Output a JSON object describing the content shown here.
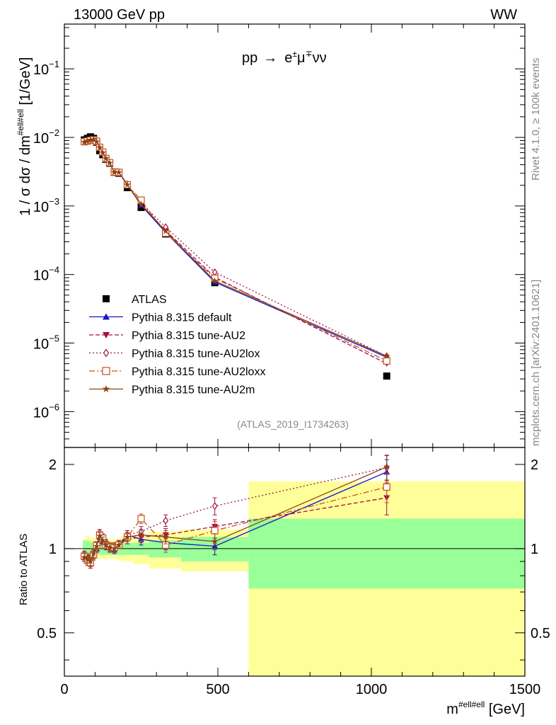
{
  "header": {
    "left": "13000 GeV pp",
    "right": "WW"
  },
  "process": {
    "prefix": "pp",
    "arrow": "→",
    "e": "e",
    "e_sup": "±",
    "mu": "μ",
    "mu_sup": "∓",
    "nunu": "νν"
  },
  "side_labels": {
    "rivet": "Rivet 4.1.0, ≥ 100k events",
    "mcplots": "mcplots.cern.ch [arXiv:2401.10621]"
  },
  "analysis_id": "(ATLAS_2019_I1734263)",
  "ylabel_main": {
    "p1": "1 / σ  dσ / dm",
    "sup": "#ell#ell",
    "p2": " [1/GeV]"
  },
  "ylabel_ratio": "Ratio to ATLAS",
  "xlabel": {
    "p1": "m",
    "sup": "#ell#ell",
    "p2": " [GeV]"
  },
  "main_ticks": [
    {
      "mant": "10",
      "exp": "−6",
      "value": 1e-06
    },
    {
      "mant": "10",
      "exp": "−5",
      "value": 1e-05
    },
    {
      "mant": "10",
      "exp": "−4",
      "value": 0.0001
    },
    {
      "mant": "10",
      "exp": "−3",
      "value": 0.001
    },
    {
      "mant": "10",
      "exp": "−2",
      "value": 0.01
    },
    {
      "mant": "10",
      "exp": "−1",
      "value": 0.1
    }
  ],
  "ratio_ticks": [
    {
      "label": "0.5",
      "value": 0.5
    },
    {
      "label": "1",
      "value": 1
    },
    {
      "label": "2",
      "value": 2
    }
  ],
  "x_ticks": [
    {
      "label": "0",
      "value": 0
    },
    {
      "label": "500",
      "value": 500
    },
    {
      "label": "1000",
      "value": 1000
    },
    {
      "label": "1500",
      "value": 1500
    }
  ],
  "chart_data": {
    "type": "line",
    "title": "pp → e±μ∓νν",
    "xlabel": "m#ell#ell [GeV]",
    "ylabel": "1 / σ dσ / dm#ell#ell [1/GeV]",
    "xlim": [
      0,
      1500
    ],
    "ylim_main": [
      3e-07,
      0.45
    ],
    "ylim_ratio": [
      0.35,
      2.3
    ],
    "yscale": "log",
    "x": [
      65,
      75,
      85,
      95,
      105,
      115,
      125,
      135,
      147.5,
      162.5,
      177.5,
      205,
      250,
      330,
      490,
      1050
    ],
    "data": {
      "name": "ATLAS",
      "values": [
        0.0092,
        0.0097,
        0.0102,
        0.0097,
        0.0085,
        0.0064,
        0.0056,
        0.0048,
        0.0042,
        0.0031,
        0.003,
        0.00185,
        0.00095,
        0.00039,
        7.6e-05,
        3.3e-06
      ],
      "band_edges": [
        60,
        70,
        80,
        90,
        100,
        110,
        120,
        130,
        140,
        155,
        170,
        185,
        225,
        275,
        380,
        600,
        1500
      ],
      "stat_err": [
        0.07,
        0.07,
        0.06,
        0.05,
        0.05,
        0.05,
        0.05,
        0.05,
        0.05,
        0.05,
        0.05,
        0.05,
        0.05,
        0.07,
        0.1,
        0.28
      ],
      "total_err": [
        0.08,
        0.11,
        0.1,
        0.09,
        0.08,
        0.08,
        0.08,
        0.08,
        0.08,
        0.08,
        0.09,
        0.1,
        0.12,
        0.15,
        0.17,
        0.74
      ]
    },
    "series": [
      {
        "name": "Pythia 8.315 default",
        "color": "#1515c8",
        "dash": "",
        "marker": "triangle-up",
        "ratio": [
          0.93,
          0.92,
          0.91,
          0.95,
          1.0,
          1.1,
          1.06,
          1.02,
          1.02,
          0.99,
          1.03,
          1.12,
          1.08,
          1.05,
          1.02,
          1.88
        ],
        "ratio_err": [
          0.03,
          0.03,
          0.03,
          0.03,
          0.03,
          0.03,
          0.03,
          0.03,
          0.03,
          0.03,
          0.03,
          0.04,
          0.05,
          0.06,
          0.07,
          0.2
        ]
      },
      {
        "name": "Pythia 8.315 tune-AU2",
        "color": "#a0104a",
        "dash": "6,3",
        "marker": "triangle-down",
        "ratio": [
          0.94,
          0.93,
          0.9,
          0.96,
          1.01,
          1.1,
          1.08,
          1.04,
          1.0,
          1.02,
          1.03,
          1.08,
          1.1,
          1.12,
          1.2,
          1.52
        ],
        "ratio_err": [
          0.03,
          0.03,
          0.03,
          0.03,
          0.03,
          0.03,
          0.03,
          0.03,
          0.03,
          0.03,
          0.03,
          0.04,
          0.05,
          0.06,
          0.07,
          0.2
        ]
      },
      {
        "name": "Pythia 8.315 tune-AU2lox",
        "color": "#a0104a",
        "dash": "2,3",
        "marker": "diamond-open",
        "ratio": [
          0.95,
          0.9,
          0.88,
          0.94,
          1.0,
          1.14,
          1.1,
          1.05,
          1.01,
          1.0,
          1.04,
          1.12,
          1.15,
          1.26,
          1.42,
          1.95
        ],
        "ratio_err": [
          0.03,
          0.03,
          0.03,
          0.03,
          0.03,
          0.03,
          0.03,
          0.03,
          0.03,
          0.03,
          0.03,
          0.04,
          0.05,
          0.06,
          0.1,
          0.2
        ]
      },
      {
        "name": "Pythia 8.315 tune-AU2loxx",
        "color": "#c8501e",
        "dash": "8,3,2,3",
        "marker": "square-open",
        "ratio": [
          0.94,
          0.91,
          0.89,
          0.95,
          1.03,
          1.12,
          1.09,
          1.03,
          1.02,
          1.01,
          1.03,
          1.1,
          1.28,
          1.03,
          1.16,
          1.66
        ],
        "ratio_err": [
          0.03,
          0.03,
          0.03,
          0.03,
          0.03,
          0.03,
          0.03,
          0.03,
          0.03,
          0.03,
          0.03,
          0.04,
          0.05,
          0.06,
          0.09,
          0.2
        ]
      },
      {
        "name": "Pythia 8.315 tune-AU2m",
        "color": "#8b4513",
        "dash": "",
        "marker": "star",
        "ratio": [
          0.93,
          0.92,
          0.9,
          0.96,
          1.02,
          1.11,
          1.07,
          1.03,
          1.01,
          1.0,
          1.03,
          1.1,
          1.12,
          1.1,
          1.06,
          1.96
        ],
        "ratio_err": [
          0.03,
          0.03,
          0.03,
          0.03,
          0.03,
          0.03,
          0.03,
          0.03,
          0.03,
          0.03,
          0.03,
          0.04,
          0.05,
          0.06,
          0.07,
          0.2
        ]
      }
    ]
  }
}
